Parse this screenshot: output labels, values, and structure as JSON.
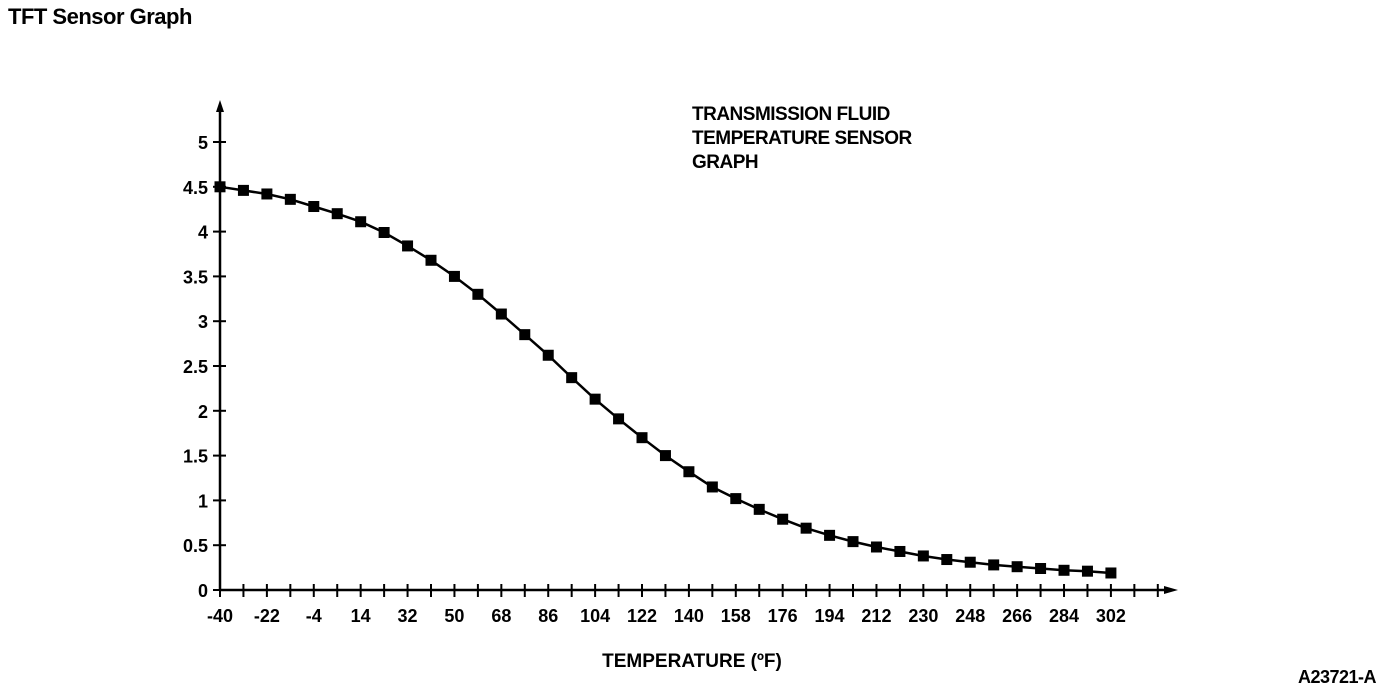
{
  "page": {
    "title": "TFT Sensor Graph",
    "figure_id": "A23721-A"
  },
  "chart_data": {
    "type": "line",
    "annotation": [
      "TRANSMISSION FLUID",
      "TEMPERATURE SENSOR",
      "GRAPH"
    ],
    "xlabel": "TEMPERATURE (ºF)",
    "ylabel": "",
    "x_tick_labels": [
      "-40",
      "-22",
      "-4",
      "14",
      "32",
      "50",
      "68",
      "86",
      "104",
      "122",
      "140",
      "158",
      "176",
      "194",
      "212",
      "230",
      "248",
      "266",
      "284",
      "302"
    ],
    "y_tick_labels": [
      "0",
      "0.5",
      "1",
      "1.5",
      "2",
      "2.5",
      "3",
      "3.5",
      "4",
      "4.5",
      "5"
    ],
    "xlim": [
      -40,
      320
    ],
    "ylim": [
      0,
      5.2
    ],
    "grid": false,
    "marker": "square",
    "series": [
      {
        "x": [
          -40,
          -31,
          -22,
          -13,
          -4,
          5,
          14,
          23,
          32,
          41,
          50,
          59,
          68,
          77,
          86,
          95,
          104,
          113,
          122,
          131,
          140,
          149,
          158,
          167,
          176,
          185,
          194,
          203,
          212,
          221,
          230,
          239,
          248,
          257,
          266,
          275,
          284,
          293,
          302
        ],
        "values": [
          4.5,
          4.46,
          4.42,
          4.36,
          4.28,
          4.2,
          4.11,
          3.99,
          3.84,
          3.68,
          3.5,
          3.3,
          3.08,
          2.85,
          2.62,
          2.37,
          2.13,
          1.91,
          1.7,
          1.5,
          1.32,
          1.15,
          1.02,
          0.9,
          0.79,
          0.69,
          0.61,
          0.54,
          0.48,
          0.43,
          0.38,
          0.34,
          0.31,
          0.28,
          0.26,
          0.24,
          0.22,
          0.21,
          0.19
        ]
      }
    ]
  }
}
